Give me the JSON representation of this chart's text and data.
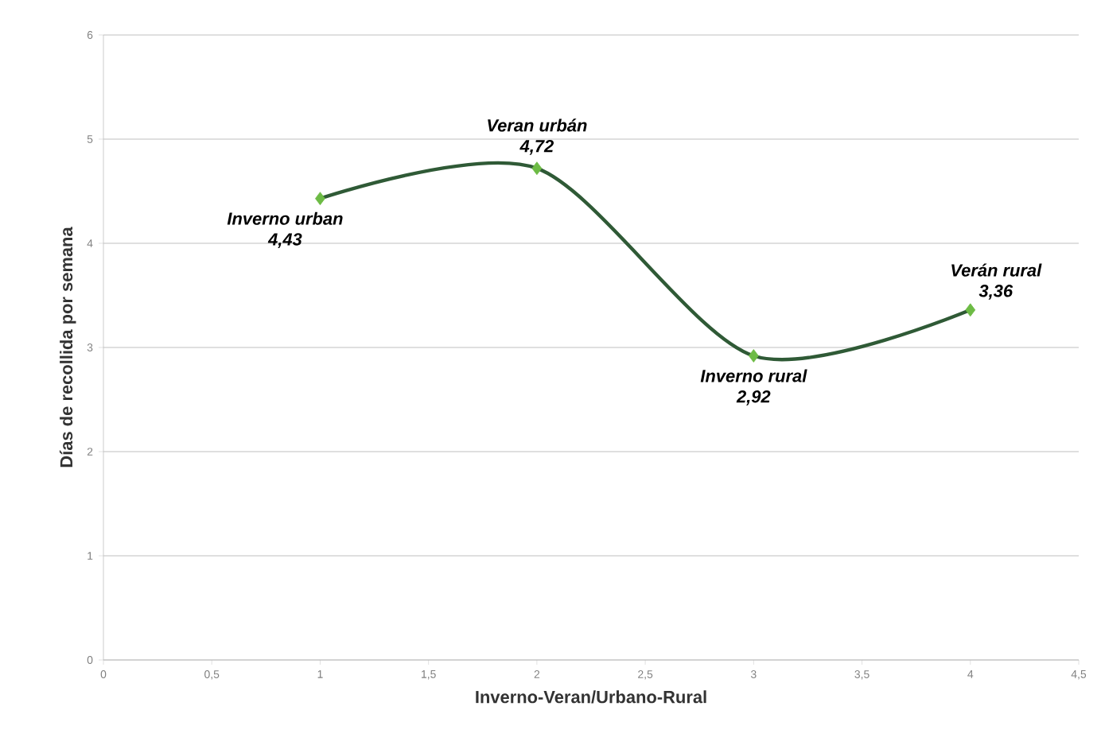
{
  "chart_data": {
    "type": "line",
    "xlabel": "Inverno-Veran/Urbano-Rural",
    "ylabel": "Días de recollida por semana",
    "x": [
      1,
      2,
      3,
      4
    ],
    "series": [
      {
        "color": "#2f5a36",
        "colors": [
          "#6dbb45",
          "#6dbb45",
          "#6dbb45",
          "#6dbb45"
        ],
        "values": [
          4.43,
          4.72,
          2.92,
          3.36
        ],
        "value_labels": [
          "4,43",
          "4,72",
          "2,92",
          "3,36"
        ]
      }
    ],
    "annotations": [
      {
        "text": "Inverno urban",
        "x": 1,
        "y": 4.43
      },
      {
        "text": "Veran urbán",
        "x": 2,
        "y": 4.72
      },
      {
        "text": "Inverno rural",
        "x": 3,
        "y": 2.92
      },
      {
        "text": "Verán rural",
        "x": 4,
        "y": 3.36
      }
    ],
    "xlim": [
      0,
      4.5
    ],
    "ylim": [
      0,
      6
    ],
    "xticks": [
      0,
      {
        "value": 0.5,
        "label": "0,5"
      },
      1,
      {
        "value": 1.5,
        "label": "1,5"
      },
      2,
      {
        "value": 2.5,
        "label": "2,5"
      },
      3,
      {
        "value": 3.5,
        "label": "3,5"
      },
      4,
      {
        "value": 4.5,
        "label": "4,5"
      }
    ],
    "yticks": [
      0,
      1,
      2,
      3,
      4,
      5,
      6
    ],
    "grid": "y",
    "marker": "diamond",
    "line_style": "solid"
  }
}
